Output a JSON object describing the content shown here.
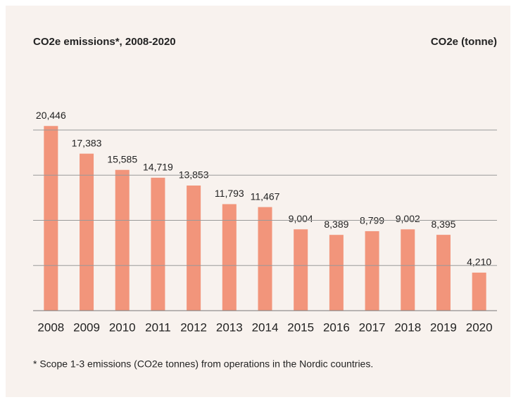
{
  "chart_data": {
    "type": "bar",
    "title": "CO2e emissions*, 2008-2020",
    "y_axis_label": "CO2e (tonne)",
    "categories": [
      "2008",
      "2009",
      "2010",
      "2011",
      "2012",
      "2013",
      "2014",
      "2015",
      "2016",
      "2017",
      "2018",
      "2019",
      "2020"
    ],
    "values": [
      20446,
      17383,
      15585,
      14719,
      13853,
      11793,
      11467,
      9004,
      8389,
      8799,
      9002,
      8395,
      4210
    ],
    "value_labels": [
      "20,446",
      "17,383",
      "15,585",
      "14,719",
      "13,853",
      "11,793",
      "11,467",
      "9,004",
      "8,389",
      "8,799",
      "9,002",
      "8,395",
      "4,210"
    ],
    "color": "#f2957b",
    "ylim": [
      0,
      20000
    ],
    "yticks": [
      0,
      5000,
      10000,
      15000,
      20000
    ],
    "grid": true,
    "footnote": "* Scope 1-3 emissions (CO2e tonnes) from operations in the Nordic countries."
  }
}
